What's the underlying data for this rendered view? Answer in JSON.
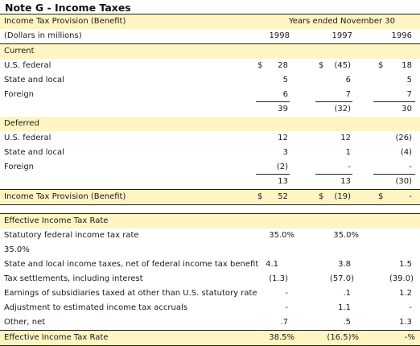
{
  "title": "Note G - Income Taxes",
  "header": {
    "label": "Income Tax Provision (Benefit)",
    "period": "Years ended November 30",
    "units": "(Dollars in millions)",
    "years": [
      "1998",
      "1997",
      "1996"
    ]
  },
  "current": {
    "heading": "Current",
    "rows": [
      {
        "label": "U.S. federal",
        "s": [
          "$",
          "$",
          "$"
        ],
        "v": [
          "28",
          "(45)",
          "18"
        ]
      },
      {
        "label": "State and local",
        "s": [
          "",
          "",
          ""
        ],
        "v": [
          "5",
          "6",
          "5"
        ]
      },
      {
        "label": "Foreign",
        "s": [
          "",
          "",
          ""
        ],
        "v": [
          "6",
          "7",
          "7"
        ]
      }
    ],
    "subtotal": [
      "39",
      "(32)",
      "30"
    ]
  },
  "deferred": {
    "heading": "Deferred",
    "rows": [
      {
        "label": "U.S. federal",
        "s": [
          "",
          "",
          ""
        ],
        "v": [
          "12",
          "12",
          "(26)"
        ]
      },
      {
        "label": "State and local",
        "s": [
          "",
          "",
          ""
        ],
        "v": [
          "3",
          "1",
          "(4)"
        ]
      },
      {
        "label": "Foreign",
        "s": [
          "",
          "",
          ""
        ],
        "v": [
          "(2)",
          "-",
          "-"
        ]
      }
    ],
    "subtotal": [
      "13",
      "13",
      "(30)"
    ]
  },
  "total": {
    "label": "Income Tax Provision (Benefit)",
    "s": [
      "$",
      "$",
      "$"
    ],
    "v": [
      "52",
      "(19)",
      "-"
    ]
  },
  "effective": {
    "heading": "Effective Income Tax Rate",
    "statutory": {
      "label": "Statutory federal income tax rate",
      "v": [
        "35.0%",
        "35.0%"
      ],
      "wrap": "35.0%"
    },
    "rows": [
      {
        "label": "State and local income taxes, net of federal income tax benefit",
        "v": [
          "4.1",
          "3.8",
          "1.5"
        ]
      },
      {
        "label": "Tax settlements, including interest",
        "v": [
          "(1.3)",
          "(57.0)",
          "(39.0)"
        ]
      },
      {
        "label": "Earnings of subsidiaries taxed at other than U.S. statutory rate",
        "v": [
          "-",
          ".1",
          "1.2"
        ]
      },
      {
        "label": "Adjustment to estimated income tax accruals",
        "v": [
          "-",
          "1.1",
          "-"
        ]
      },
      {
        "label": "Other, net",
        "v": [
          ".7",
          ".5",
          "1.3"
        ]
      }
    ],
    "total": {
      "label": "Effective Income Tax Rate",
      "v": [
        "38.5%",
        "(16.5)%",
        "-%"
      ]
    }
  },
  "colors": {
    "bar": "#fff5c2",
    "rule": "#222222"
  }
}
